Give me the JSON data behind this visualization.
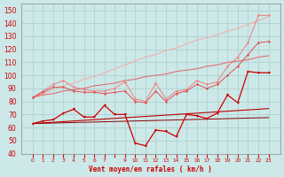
{
  "x": [
    0,
    1,
    2,
    3,
    4,
    5,
    6,
    7,
    8,
    9,
    10,
    11,
    12,
    13,
    14,
    15,
    16,
    17,
    18,
    19,
    20,
    21,
    22,
    23
  ],
  "line_upper_jagged": [
    83,
    88,
    93,
    96,
    91,
    89,
    88,
    88,
    90,
    95,
    82,
    80,
    94,
    82,
    88,
    89,
    96,
    93,
    95,
    107,
    114,
    125,
    146,
    146
  ],
  "line_upper_straight": [
    83,
    86,
    89,
    92,
    94,
    97,
    99,
    102,
    105,
    108,
    111,
    114,
    116,
    119,
    121,
    124,
    127,
    129,
    131,
    134,
    136,
    139,
    142,
    145
  ],
  "line_mid_jagged": [
    83,
    87,
    91,
    91,
    88,
    87,
    87,
    86,
    87,
    88,
    80,
    79,
    88,
    80,
    86,
    88,
    93,
    90,
    93,
    100,
    107,
    116,
    125,
    126
  ],
  "line_mid_straight": [
    83,
    85,
    86,
    88,
    89,
    90,
    92,
    93,
    94,
    96,
    97,
    99,
    100,
    101,
    103,
    104,
    105,
    107,
    108,
    110,
    111,
    112,
    114,
    115
  ],
  "line_lower_volatile": [
    63,
    65,
    66,
    71,
    74,
    68,
    68,
    77,
    70,
    70,
    48,
    46,
    58,
    57,
    53,
    70,
    69,
    67,
    71,
    85,
    79,
    103,
    102,
    102
  ],
  "line_lower_straight1": [
    63,
    63.5,
    64,
    64.5,
    65,
    65.5,
    66,
    66.5,
    67,
    67.5,
    68,
    68.5,
    69,
    69.5,
    70,
    70.5,
    71,
    71.5,
    72,
    72.5,
    73,
    73.5,
    74,
    74.5
  ],
  "line_lower_straight2": [
    63,
    63.2,
    63.4,
    63.6,
    63.8,
    64.0,
    64.2,
    64.4,
    64.6,
    64.8,
    65,
    65.2,
    65.4,
    65.6,
    65.8,
    66,
    66.2,
    66.4,
    66.6,
    66.8,
    67,
    67.2,
    67.4,
    67.6
  ],
  "background_color": "#cce8e8",
  "grid_color": "#aacccc",
  "ylim": [
    40,
    155
  ],
  "yticks": [
    40,
    50,
    60,
    70,
    80,
    90,
    100,
    110,
    120,
    130,
    140,
    150
  ],
  "xlabel": "Vent moyen/en rafales ( km/h )"
}
